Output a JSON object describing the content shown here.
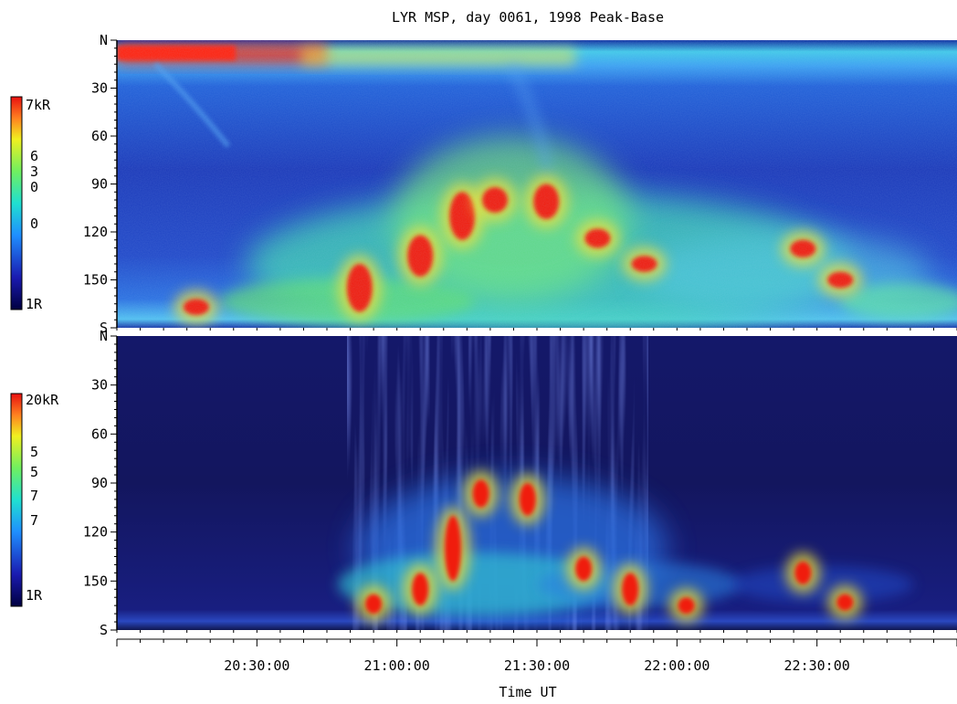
{
  "chart_data": {
    "type": "heatmap",
    "title": "LYR MSP, day 0061, 1998 Peak-Base",
    "xlabel": "Time UT",
    "x_ticks": [
      "20:30:00",
      "21:00:00",
      "21:30:00",
      "22:00:00",
      "22:30:00"
    ],
    "panels": [
      {
        "name": "upper",
        "y_ticks": [
          "N",
          "30",
          "60",
          "90",
          "120",
          "150",
          "S"
        ],
        "colorbar": {
          "max_label": "7kR",
          "min_label": "1R",
          "mid_labels": [
            "6",
            "3",
            "0",
            "0"
          ]
        },
        "events": [
          {
            "time": "20:17",
            "elev_from": 162,
            "elev_to": 172,
            "level": "high"
          },
          {
            "time": "20:52",
            "elev_from": 140,
            "elev_to": 170,
            "level": "high"
          },
          {
            "time": "21:05",
            "elev_from": 122,
            "elev_to": 148,
            "level": "high"
          },
          {
            "time": "21:14",
            "elev_from": 95,
            "elev_to": 125,
            "level": "high"
          },
          {
            "time": "21:21",
            "elev_from": 92,
            "elev_to": 108,
            "level": "high"
          },
          {
            "time": "21:32",
            "elev_from": 90,
            "elev_to": 112,
            "level": "high"
          },
          {
            "time": "21:43",
            "elev_from": 118,
            "elev_to": 130,
            "level": "high"
          },
          {
            "time": "21:53",
            "elev_from": 135,
            "elev_to": 145,
            "level": "high"
          },
          {
            "time": "22:27",
            "elev_from": 125,
            "elev_to": 136,
            "level": "high"
          },
          {
            "time": "22:35",
            "elev_from": 145,
            "elev_to": 155,
            "level": "high"
          }
        ]
      },
      {
        "name": "lower",
        "y_ticks": [
          "N",
          "30",
          "60",
          "90",
          "120",
          "150",
          "S"
        ],
        "colorbar": {
          "max_label": "20kR",
          "min_label": "1R",
          "mid_labels": [
            "5",
            "5",
            "7",
            "7"
          ]
        },
        "events": [
          {
            "time": "20:55",
            "elev_from": 158,
            "elev_to": 170,
            "level": "high"
          },
          {
            "time": "21:05",
            "elev_from": 145,
            "elev_to": 165,
            "level": "high"
          },
          {
            "time": "21:12",
            "elev_from": 110,
            "elev_to": 150,
            "level": "high"
          },
          {
            "time": "21:18",
            "elev_from": 88,
            "elev_to": 105,
            "level": "high"
          },
          {
            "time": "21:28",
            "elev_from": 90,
            "elev_to": 110,
            "level": "high"
          },
          {
            "time": "21:40",
            "elev_from": 135,
            "elev_to": 150,
            "level": "high"
          },
          {
            "time": "21:50",
            "elev_from": 145,
            "elev_to": 165,
            "level": "high"
          },
          {
            "time": "22:02",
            "elev_from": 160,
            "elev_to": 170,
            "level": "high"
          },
          {
            "time": "22:27",
            "elev_from": 138,
            "elev_to": 152,
            "level": "high"
          },
          {
            "time": "22:36",
            "elev_from": 158,
            "elev_to": 168,
            "level": "high"
          }
        ]
      }
    ],
    "x_range": [
      "20:00:00",
      "23:00:00"
    ],
    "y_range": [
      0,
      180
    ]
  }
}
